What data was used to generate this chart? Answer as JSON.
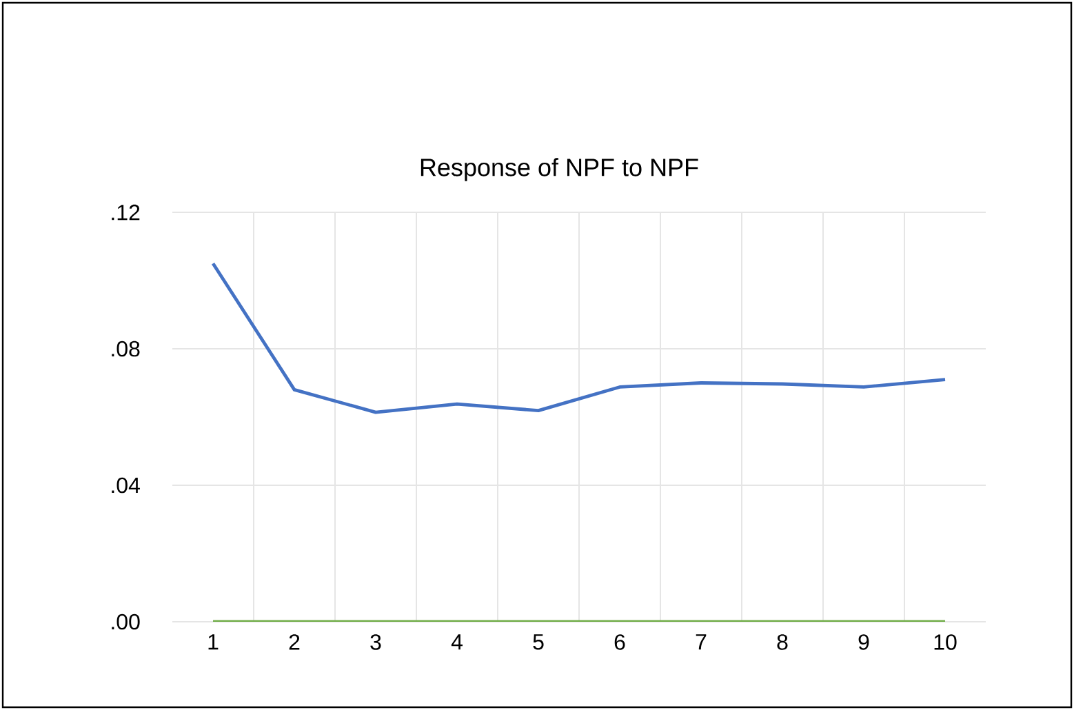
{
  "chart_data": {
    "type": "line",
    "title": "Response of NPF to NPF",
    "categories": [
      "1",
      "2",
      "3",
      "4",
      "5",
      "6",
      "7",
      "8",
      "9",
      "10"
    ],
    "series": [
      {
        "color": "#4472c4",
        "values": [
          0.105,
          0.068,
          0.0614,
          0.0638,
          0.0619,
          0.0688,
          0.07,
          0.0697,
          0.0688,
          0.071
        ]
      },
      {
        "color": "#70ad47",
        "values": [
          0,
          0,
          0,
          0,
          0,
          0,
          0,
          0,
          0,
          0
        ]
      }
    ],
    "ylim": [
      0,
      0.12
    ],
    "yticks": [
      {
        "value": 0,
        "label": ".00"
      },
      {
        "value": 0.04,
        "label": ".04"
      },
      {
        "value": 0.08,
        "label": ".08"
      },
      {
        "value": 0.12,
        "label": ".12"
      }
    ],
    "grid": true,
    "marker": "none",
    "line_style": "solid"
  }
}
